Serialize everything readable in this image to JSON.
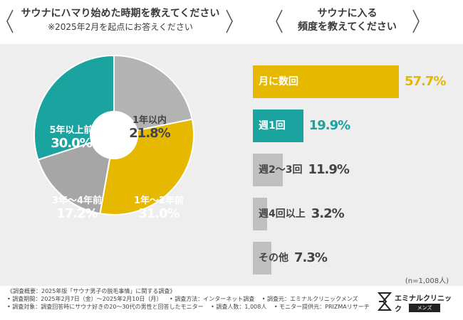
{
  "colors": {
    "teal": "#1ba3a0",
    "gold": "#e6b800",
    "gray": "#a6a6a6",
    "light_gray": "#c0c0c0",
    "panel": "#eeeeee",
    "text": "#444444"
  },
  "left_question": {
    "title": "サウナにハマり始めた時期を教えてください",
    "subtitle": "※2025年2月を起点にお答えください"
  },
  "right_question": {
    "line1": "サウナに入る",
    "line2": "頻度を教えてください"
  },
  "chart_data": [
    {
      "type": "pie",
      "title": "サウナにハマり始めた時期を教えてください",
      "slices": [
        {
          "label": "1年以内",
          "value": 21.8,
          "color": "#b3b3b3"
        },
        {
          "label": "1年〜2年前",
          "value": 31.0,
          "color": "#e6b800"
        },
        {
          "label": "3年〜4年前",
          "value": 17.2,
          "color": "#a6a6a6"
        },
        {
          "label": "5年以上前",
          "value": 30.0,
          "color": "#1ba3a0"
        }
      ],
      "display": [
        "21.8%",
        "31.0%",
        "17.2%",
        "30.0%"
      ],
      "value_color": [
        "#444444",
        "#ffffff",
        "#ffffff",
        "#ffffff"
      ]
    },
    {
      "type": "bar",
      "orientation": "horizontal",
      "title": "サウナに入る頻度を教えてください",
      "categories": [
        "月に数回",
        "週1回",
        "週2〜3回",
        "週4回以上",
        "その他"
      ],
      "values": [
        57.7,
        19.9,
        11.9,
        3.2,
        7.3
      ],
      "display": [
        "57.7%",
        "19.9%",
        "11.9%",
        "3.2%",
        "7.3%"
      ],
      "colors": [
        "#e6b800",
        "#1ba3a0",
        "#c0c0c0",
        "#c0c0c0",
        "#c0c0c0"
      ],
      "label_color": [
        "#ffffff",
        "#ffffff",
        "#444444",
        "#444444",
        "#444444"
      ],
      "value_color": [
        "#e6b800",
        "#1ba3a0",
        "#444444",
        "#444444",
        "#444444"
      ],
      "xlim": [
        0,
        57.7
      ]
    }
  ],
  "sample_size": "(n=1,008人)",
  "footer": {
    "survey_summary": "《調査概要：2025年版「サウナ男子の脱毛事情」に関する調査》",
    "survey_period": "• 調査期間：2025年2月7日（金）〜2025年2月10日（月）",
    "survey_method": "• 調査方法：インターネット調査",
    "survey_by": "• 調査元：エミナルクリニックメンズ",
    "survey_target": "• 調査対象：調査回答時にサウナ好きの20〜30代の男性と回答したモニター",
    "respondents": "• 調査人数：1,008人",
    "monitor_provider": "• モニター提供元：PRIZMAリサーチ"
  },
  "logo": {
    "name": "エミナルクリニック",
    "tag": "メンズ"
  }
}
